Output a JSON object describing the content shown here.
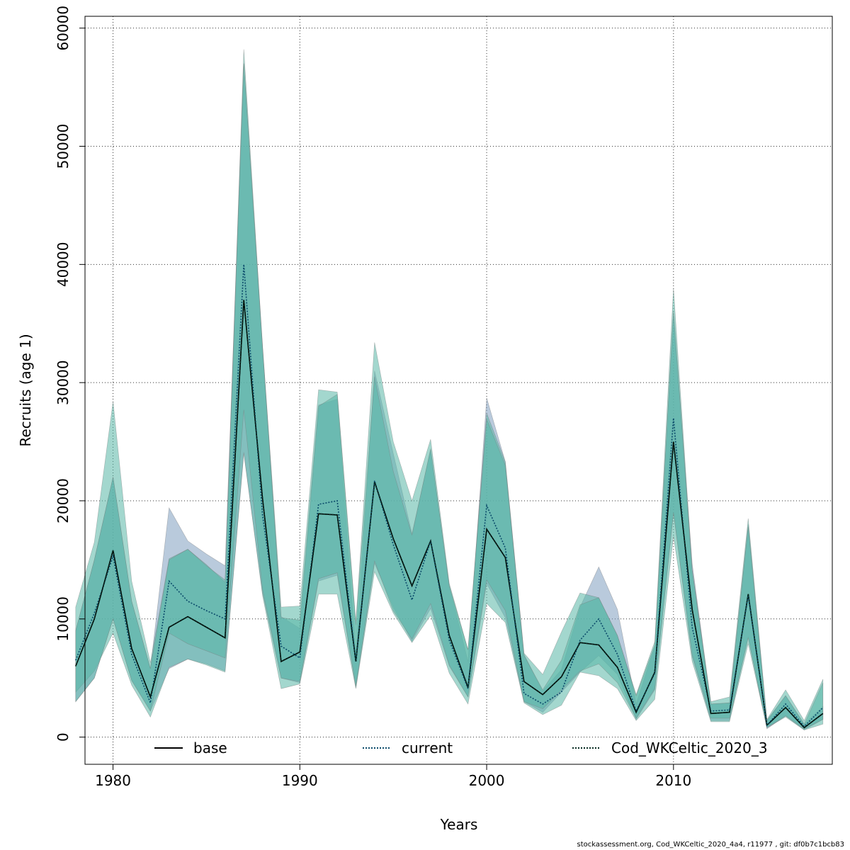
{
  "chart_data": {
    "type": "area",
    "xlabel": "Years",
    "ylabel": "Recruits (age 1)",
    "xlim": [
      1978.5,
      2018.5
    ],
    "ylim": [
      -2300,
      61000
    ],
    "x_ticks": [
      1980,
      1990,
      2000,
      2010
    ],
    "y_ticks": [
      0,
      10000,
      20000,
      30000,
      40000,
      50000,
      60000
    ],
    "grid": true,
    "legend_position": "bottom",
    "x": [
      1978,
      1979,
      1980,
      1981,
      1982,
      1983,
      1984,
      1985,
      1986,
      1987,
      1988,
      1989,
      1990,
      1991,
      1992,
      1993,
      1994,
      1995,
      1996,
      1997,
      1998,
      1999,
      2000,
      2001,
      2002,
      2003,
      2004,
      2005,
      2006,
      2007,
      2008,
      2009,
      2010,
      2011,
      2012,
      2013,
      2014,
      2015,
      2016,
      2017,
      2018
    ],
    "series": [
      {
        "name": "base",
        "line_style": "solid",
        "band_color": "#7f9fc0",
        "values": [
          6000,
          10000,
          15800,
          7500,
          3400,
          9300,
          10200,
          9300,
          8400,
          37000,
          20200,
          6400,
          7200,
          18900,
          18800,
          6400,
          21600,
          16800,
          12800,
          16600,
          8600,
          4200,
          17600,
          15200,
          4700,
          3600,
          5100,
          8000,
          7800,
          5900,
          2100,
          5500,
          25000,
          10800,
          2000,
          2100,
          12100,
          1000,
          2500,
          800,
          2000
        ],
        "lower": [
          3000,
          5000,
          10000,
          4800,
          2200,
          5800,
          6600,
          6200,
          5600,
          24000,
          12200,
          5000,
          4600,
          13200,
          13700,
          4200,
          14700,
          11000,
          8100,
          10900,
          6000,
          3400,
          13000,
          10100,
          3000,
          2100,
          3800,
          5500,
          6900,
          5300,
          1500,
          4000,
          19000,
          6800,
          1400,
          1400,
          8500,
          700,
          1800,
          600,
          1500
        ],
        "upper": [
          9000,
          15000,
          22000,
          11500,
          5800,
          19400,
          16600,
          15500,
          14500,
          57000,
          33200,
          10200,
          9200,
          28100,
          28600,
          7000,
          31000,
          24000,
          17200,
          24300,
          12800,
          6400,
          28700,
          23300,
          7000,
          3900,
          5700,
          11000,
          14400,
          10800,
          2800,
          7700,
          36000,
          14700,
          2800,
          2900,
          18000,
          1400,
          3500,
          1100,
          2600
        ]
      },
      {
        "name": "current",
        "line_style": "dotted",
        "band_color": "#58b7a5",
        "values": [
          6500,
          10500,
          15300,
          7000,
          2900,
          13200,
          11500,
          10700,
          10000,
          40000,
          18800,
          7700,
          6700,
          19700,
          20000,
          6400,
          21700,
          16300,
          11600,
          16600,
          8200,
          4100,
          19600,
          16000,
          3700,
          2800,
          3800,
          8200,
          10000,
          7000,
          2200,
          5400,
          27000,
          9300,
          2200,
          2300,
          12000,
          1000,
          2800,
          900,
          2500
        ],
        "lower": [
          3800,
          5600,
          8800,
          4400,
          1700,
          5900,
          6600,
          6100,
          5500,
          24100,
          12000,
          4100,
          4500,
          12100,
          12100,
          4100,
          14000,
          10500,
          8000,
          10300,
          5400,
          2800,
          11300,
          9700,
          2900,
          1900,
          2700,
          5500,
          5200,
          4100,
          1400,
          3200,
          17000,
          6400,
          1300,
          1300,
          7900,
          800,
          1700,
          600,
          1100
        ],
        "upper": [
          11000,
          16500,
          28400,
          13200,
          6300,
          15100,
          15900,
          14600,
          13100,
          58200,
          33100,
          11000,
          11100,
          29400,
          29200,
          9800,
          33400,
          25000,
          20000,
          25200,
          13000,
          7400,
          27400,
          23300,
          7100,
          5300,
          8900,
          12200,
          11800,
          8600,
          3600,
          8100,
          38000,
          14200,
          3000,
          3400,
          18500,
          1500,
          4000,
          1400,
          4900
        ]
      },
      {
        "name": "Cod_WKCeltic_2020_3",
        "line_style": "dotted",
        "band_color": "#58b7a5",
        "values": [
          6000,
          10000,
          15800,
          7500,
          3400,
          9300,
          10200,
          9300,
          8400,
          37000,
          20200,
          6400,
          7200,
          18900,
          18800,
          6400,
          21600,
          16800,
          12800,
          16600,
          8600,
          4200,
          17600,
          15200,
          4700,
          3600,
          5100,
          8000,
          7800,
          5900,
          2100,
          5500,
          25000,
          10800,
          2000,
          2100,
          12100,
          1000,
          2500,
          800,
          2000
        ],
        "lower": [
          3000,
          5000,
          10000,
          4800,
          2200,
          8800,
          7900,
          7300,
          6700,
          27700,
          12500,
          5000,
          4700,
          13400,
          13900,
          4300,
          14900,
          10700,
          8300,
          11300,
          6100,
          3400,
          13300,
          10700,
          3000,
          2400,
          4000,
          5600,
          6200,
          4600,
          1600,
          4100,
          19000,
          7000,
          1600,
          1600,
          8400,
          800,
          1800,
          700,
          1500
        ],
        "upper": [
          9000,
          15000,
          22000,
          11500,
          5800,
          15000,
          15900,
          14500,
          13300,
          57000,
          33000,
          10100,
          9900,
          28000,
          29000,
          9500,
          30500,
          22500,
          17100,
          24400,
          12800,
          7400,
          26900,
          23000,
          6900,
          4000,
          6500,
          11200,
          11800,
          8600,
          3500,
          7800,
          36000,
          14100,
          2800,
          2900,
          17800,
          1400,
          3500,
          1100,
          4600
        ]
      }
    ],
    "footer_text": "stockassessment.org, Cod_WKCeltic_2020_4a4, r11977 , git: df0b7c1bcb83"
  }
}
